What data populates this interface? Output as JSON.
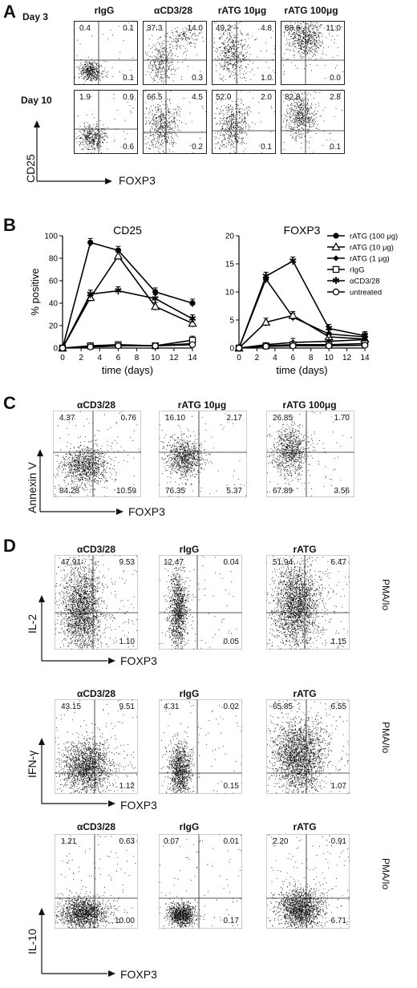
{
  "panels": {
    "A": {
      "label": "A",
      "columns": [
        "rIgG",
        "αCD3/28",
        "rATG 10μg",
        "rATG 100μg"
      ],
      "rows": [
        {
          "label": "Day 3",
          "quads": [
            [
              "0.4",
              "0.1",
              "0.1"
            ],
            [
              "37.3",
              "14.0",
              "0.3"
            ],
            [
              "49.2",
              "4.8",
              "1.0"
            ],
            [
              "88.6",
              "11.0",
              "0.0"
            ]
          ]
        },
        {
          "label": "Day 10",
          "quads": [
            [
              "1.9",
              "0.9",
              "0.6"
            ],
            [
              "66.5",
              "4.5",
              "0.2"
            ],
            [
              "52.0",
              "2.0",
              "0.1"
            ],
            [
              "82.8",
              "2.8",
              "0.1"
            ]
          ]
        }
      ],
      "y_axis": "CD25",
      "x_axis": "FOXP3"
    },
    "B": {
      "label": "B",
      "ylabel": "% positive",
      "legend": [
        "rATG (100 μg)",
        "rATG (10 μg)",
        "rATG (1 μg)",
        "rIgG",
        "αCD3/28",
        "untreated"
      ]
    },
    "C": {
      "label": "C",
      "columns": [
        "αCD3/28",
        "rATG 10μg",
        "rATG 100μg"
      ],
      "quads": [
        [
          "4.37",
          "0.76",
          "84.28",
          "10.59"
        ],
        [
          "16.10",
          "2.17",
          "76.35",
          "5.37"
        ],
        [
          "26.85",
          "1.70",
          "67.89",
          "3.56"
        ]
      ],
      "y_axis": "Annexin V",
      "x_axis": "FOXP3"
    },
    "D": {
      "label": "D",
      "columns": [
        "αCD3/28",
        "rIgG",
        "rATG"
      ],
      "stim": "PMA/Io",
      "x_axis": "FOXP3",
      "rows": [
        {
          "y_axis": "IL-2",
          "quads": [
            [
              "47.91",
              "9.53",
              "1.10"
            ],
            [
              "12.47",
              "0.04",
              "0.05"
            ],
            [
              "51.94",
              "6.47",
              "1.15"
            ]
          ]
        },
        {
          "y_axis": "IFN-γ",
          "quads": [
            [
              "43.15",
              "9.51",
              "1.12"
            ],
            [
              "4.31",
              "0.02",
              "0.15"
            ],
            [
              "65.85",
              "6.55",
              "1.07"
            ]
          ]
        },
        {
          "y_axis": "IL-10",
          "quads": [
            [
              "1.21",
              "0.63",
              "10.00"
            ],
            [
              "0.07",
              "0.01",
              "0.17"
            ],
            [
              "2.20",
              "0.91",
              "6.71"
            ]
          ]
        }
      ]
    }
  },
  "chart_data": [
    {
      "type": "line",
      "title": "CD25",
      "xlabel": "time (days)",
      "ylabel": "% positive",
      "x": [
        0,
        3,
        6,
        10,
        14
      ],
      "xticks": [
        0,
        2,
        4,
        6,
        8,
        10,
        12,
        14
      ],
      "ylim": [
        0,
        100
      ],
      "yticks": [
        0,
        20,
        40,
        60,
        80,
        100
      ],
      "series": [
        {
          "name": "rATG (100 μg)",
          "marker": "circle-filled",
          "values": [
            0,
            94,
            87,
            50,
            40
          ]
        },
        {
          "name": "rATG (10 μg)",
          "marker": "triangle-open",
          "values": [
            0,
            45,
            82,
            37,
            22
          ]
        },
        {
          "name": "rATG (1 μg)",
          "marker": "diamond-filled",
          "values": [
            0,
            1,
            2,
            2,
            4
          ]
        },
        {
          "name": "rIgG",
          "marker": "square-open",
          "values": [
            0,
            2,
            3,
            2,
            7
          ]
        },
        {
          "name": "αCD3/28",
          "marker": "star",
          "values": [
            0,
            48,
            51,
            44,
            26
          ]
        },
        {
          "name": "untreated",
          "marker": "circle-open",
          "values": [
            0,
            1,
            2,
            2,
            3
          ]
        }
      ]
    },
    {
      "type": "line",
      "title": "FOXP3",
      "xlabel": "time (days)",
      "x": [
        0,
        3,
        6,
        10,
        14
      ],
      "xticks": [
        0,
        2,
        4,
        6,
        8,
        10,
        12,
        14
      ],
      "ylim": [
        0,
        20
      ],
      "yticks": [
        0,
        5,
        10,
        15,
        20
      ],
      "series": [
        {
          "name": "rATG (100 μg)",
          "marker": "circle-filled",
          "values": [
            0,
            12.3,
            5.5,
            2.5,
            2.0
          ]
        },
        {
          "name": "rATG (10 μg)",
          "marker": "triangle-open",
          "values": [
            0,
            4.6,
            5.8,
            2.0,
            1.6
          ]
        },
        {
          "name": "rATG (1 μg)",
          "marker": "diamond-filled",
          "values": [
            0,
            0.6,
            1.0,
            1.2,
            1.5
          ]
        },
        {
          "name": "rIgG",
          "marker": "square-open",
          "values": [
            0,
            0.4,
            0.6,
            0.6,
            0.8
          ]
        },
        {
          "name": "αCD3/28",
          "marker": "star",
          "values": [
            0,
            12.8,
            15.5,
            3.5,
            2.2
          ]
        },
        {
          "name": "untreated",
          "marker": "circle-open",
          "values": [
            0,
            0.3,
            0.4,
            0.4,
            0.5
          ]
        }
      ]
    }
  ]
}
